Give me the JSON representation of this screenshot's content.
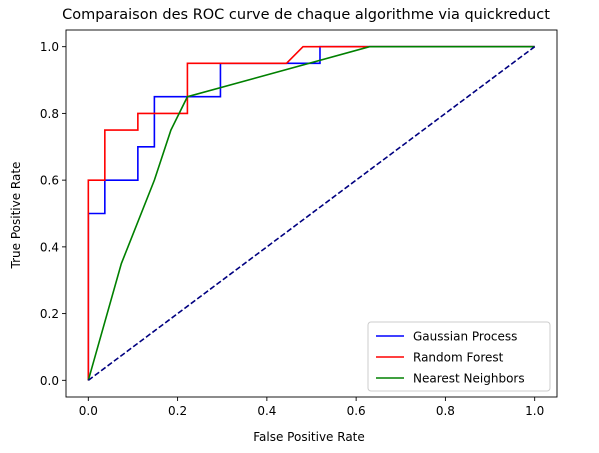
{
  "chart_data": {
    "type": "line",
    "title": "Comparaison des ROC curve de chaque algorithme via quickreduct",
    "xlabel": "False Positive Rate",
    "ylabel": "True Positive Rate",
    "xlim": [
      -0.05,
      1.05
    ],
    "ylim": [
      -0.05,
      1.05
    ],
    "xticks": [
      0.0,
      0.2,
      0.4,
      0.6,
      0.8,
      1.0
    ],
    "yticks": [
      0.0,
      0.2,
      0.4,
      0.6,
      0.8,
      1.0
    ],
    "xtick_labels": [
      "0.0",
      "0.2",
      "0.4",
      "0.6",
      "0.8",
      "1.0"
    ],
    "ytick_labels": [
      "0.0",
      "0.2",
      "0.4",
      "0.6",
      "0.8",
      "1.0"
    ],
    "grid": false,
    "legend_position": "lower-right",
    "series": [
      {
        "name": "Gaussian Process",
        "color": "#0000ff",
        "x": [
          0.0,
          0.0,
          0.037,
          0.037,
          0.111,
          0.111,
          0.148,
          0.148,
          0.222,
          0.222,
          0.296,
          0.296,
          0.519,
          0.519,
          1.0
        ],
        "y": [
          0.0,
          0.5,
          0.5,
          0.6,
          0.6,
          0.7,
          0.7,
          0.85,
          0.85,
          0.85,
          0.85,
          0.95,
          0.95,
          1.0,
          1.0
        ]
      },
      {
        "name": "Random Forest",
        "color": "#ff0000",
        "x": [
          0.0,
          0.0,
          0.037,
          0.037,
          0.111,
          0.111,
          0.222,
          0.222,
          0.444,
          0.481,
          1.0
        ],
        "y": [
          0.0,
          0.6,
          0.6,
          0.75,
          0.75,
          0.8,
          0.8,
          0.95,
          0.95,
          1.0,
          1.0
        ]
      },
      {
        "name": "Nearest Neighbors",
        "color": "#008000",
        "x": [
          0.0,
          0.074,
          0.148,
          0.185,
          0.222,
          0.63,
          1.0
        ],
        "y": [
          0.0,
          0.35,
          0.6,
          0.75,
          0.85,
          1.0,
          1.0
        ]
      },
      {
        "color": "#000080",
        "dashed": true,
        "x": [
          0.0,
          1.0
        ],
        "y": [
          0.0,
          1.0
        ]
      }
    ]
  }
}
